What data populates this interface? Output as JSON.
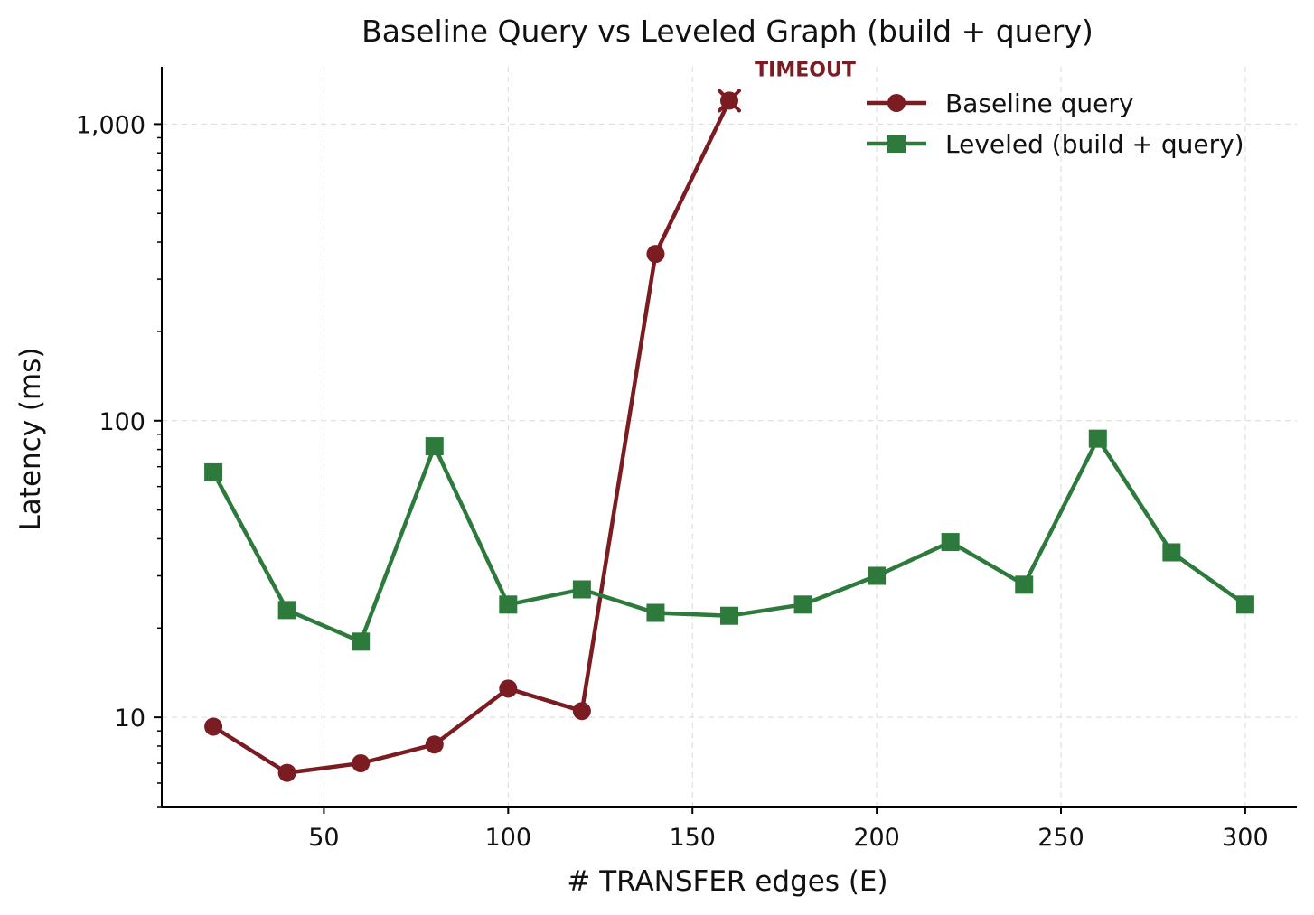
{
  "chart_data": {
    "type": "line",
    "title": "Baseline Query vs Leveled Graph (build + query)",
    "xlabel": "# TRANSFER edges (E)",
    "ylabel": "Latency (ms)",
    "xscale": "linear",
    "yscale": "log",
    "xlim": [
      6,
      314
    ],
    "ylim": [
      5,
      1560
    ],
    "xticks": [
      50,
      100,
      150,
      200,
      250,
      300
    ],
    "xtick_labels": [
      "50",
      "100",
      "150",
      "200",
      "250",
      "300"
    ],
    "yticks": [
      10,
      100,
      1000
    ],
    "ytick_labels": [
      "10",
      "100",
      "1,000"
    ],
    "grid": true,
    "legend_position": "top-right",
    "series": [
      {
        "name": "Baseline query",
        "color": "#7b1c22",
        "marker": "circle",
        "x": [
          20,
          40,
          60,
          80,
          100,
          120,
          140,
          160
        ],
        "y": [
          9.3,
          6.5,
          7.0,
          8.1,
          12.5,
          10.5,
          365,
          1200
        ],
        "timeout_index": 7
      },
      {
        "name": "Leveled (build + query)",
        "color": "#2e7a3c",
        "marker": "square",
        "x": [
          20,
          40,
          60,
          80,
          100,
          120,
          140,
          160,
          180,
          200,
          220,
          240,
          260,
          280,
          300
        ],
        "y": [
          67,
          23,
          18,
          82,
          24,
          27,
          22.5,
          22,
          24,
          30,
          39,
          28,
          87,
          36,
          24
        ]
      }
    ],
    "annotations": [
      {
        "text": "TIMEOUT",
        "x": 160,
        "y": 1200,
        "color": "#7b1c22"
      }
    ]
  }
}
